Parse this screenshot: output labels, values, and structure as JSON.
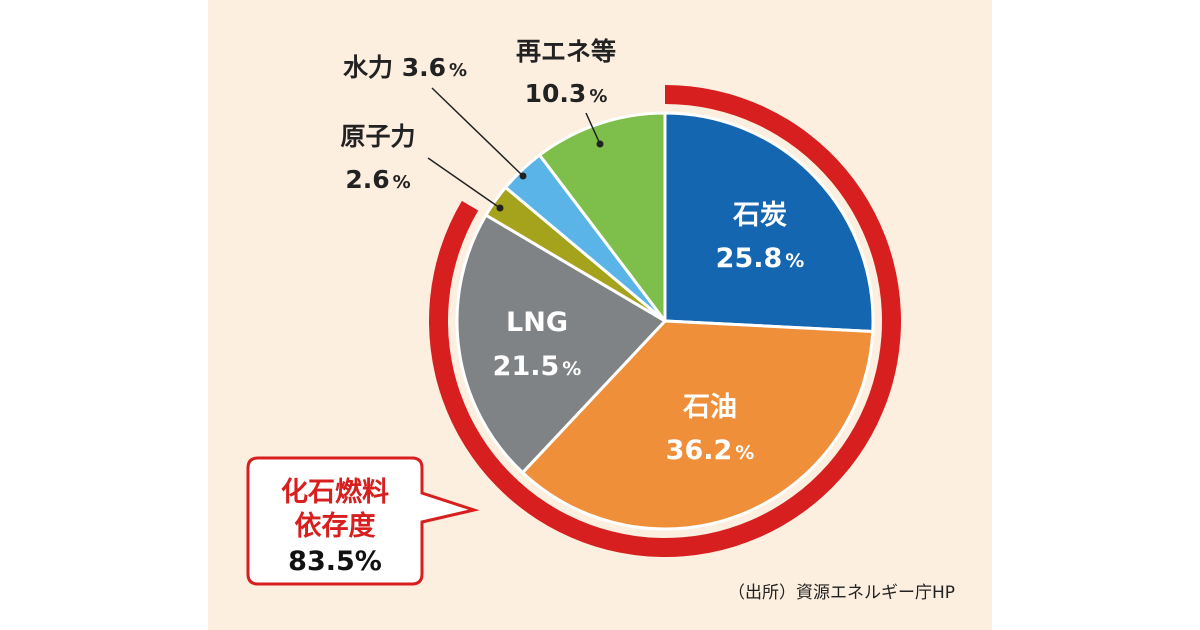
{
  "chart_data": {
    "type": "pie",
    "slices": [
      {
        "name": "石炭",
        "value": 25.8,
        "color": "#1466b0",
        "label_color": "#ffffff"
      },
      {
        "name": "石油",
        "value": 36.2,
        "color": "#ef8f3a",
        "label_color": "#ffffff"
      },
      {
        "name": "LNG",
        "value": 21.5,
        "color": "#808385",
        "label_color": "#ffffff"
      },
      {
        "name": "原子力",
        "value": 2.6,
        "color": "#a5a21c",
        "label_color": "#222222"
      },
      {
        "name": "水力",
        "value": 3.6,
        "color": "#5bb4e8",
        "label_color": "#222222"
      },
      {
        "name": "再エネ等",
        "value": 10.3,
        "color": "#7dbf4a",
        "label_color": "#222222"
      }
    ],
    "unit": "%",
    "highlight": {
      "title_line1": "化石燃料",
      "title_line2": "依存度",
      "value": "83.5%",
      "color": "#d71f1f"
    },
    "source": "（出所）資源エネルギー庁HP"
  }
}
